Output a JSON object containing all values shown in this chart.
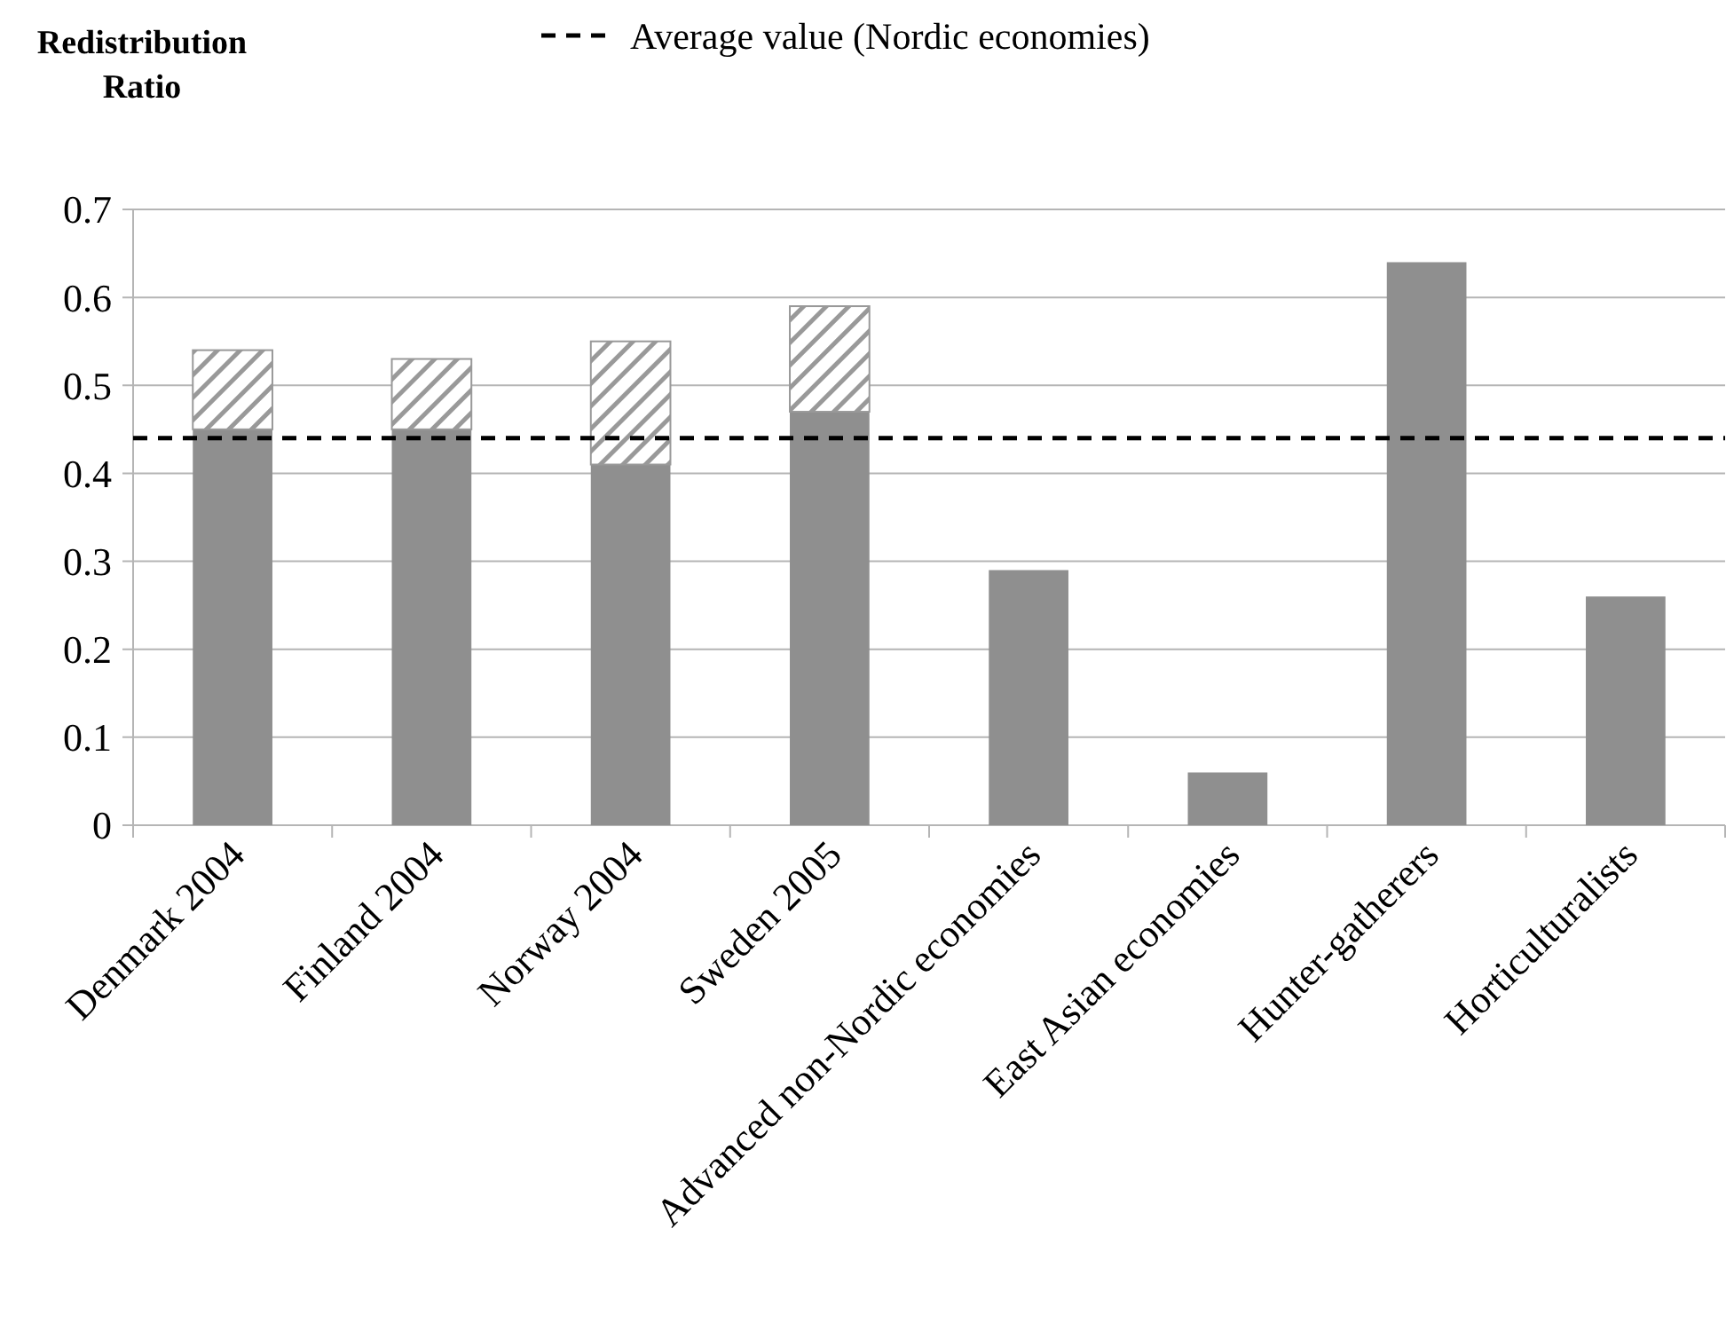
{
  "chart_data": {
    "type": "bar",
    "ylabel": "Redistribution Ratio",
    "stacked": true,
    "categories": [
      "Denmark 2004",
      "Finland 2004",
      "Norway 2004",
      "Sweden 2005",
      "Advanced non-Nordic economies",
      "East Asian economies",
      "Hunter-gatherers",
      "Horticulturalists"
    ],
    "series": [
      {
        "color": "#8f8f8f",
        "values": [
          0.45,
          0.45,
          0.41,
          0.47,
          0.29,
          0.06,
          0.64,
          0.26
        ]
      },
      {
        "color": "#999999",
        "values": [
          0.09,
          0.08,
          0.14,
          0.12,
          null,
          null,
          null,
          null
        ]
      }
    ],
    "ylim": [
      0,
      0.7
    ],
    "yticks": [
      0,
      {
        "value": 0.1,
        "label": "0.1"
      },
      {
        "value": 0.2,
        "label": "0.2"
      },
      {
        "value": 0.3,
        "label": "0.3"
      },
      {
        "value": 0.4,
        "label": "0.4"
      },
      {
        "value": 0.5,
        "label": "0.5"
      },
      {
        "value": 0.6,
        "label": "0.6"
      },
      {
        "value": 0.7,
        "label": "0.7"
      }
    ],
    "grid": "y",
    "ref_lines": [
      {
        "axis": "y",
        "value": 0.44,
        "label": "Average value (Nordic economies)",
        "color": "#000000",
        "line_style": "dashed"
      }
    ]
  }
}
